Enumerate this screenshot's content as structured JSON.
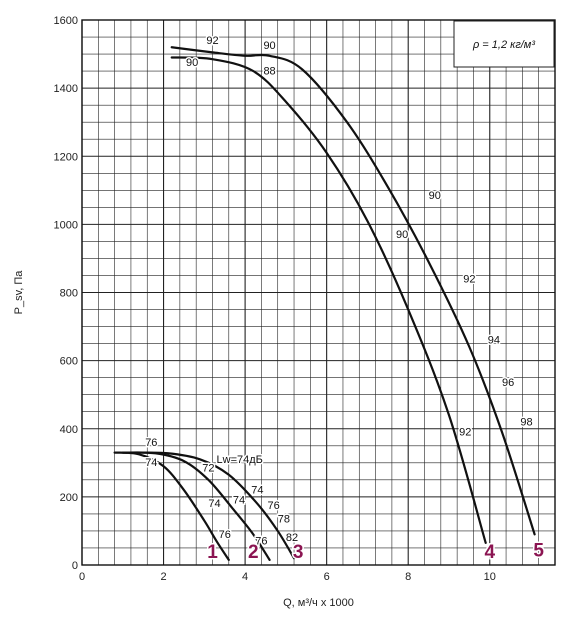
{
  "chart_data": {
    "type": "line",
    "title": "",
    "xlabel": "Q, м³/ч х 1000",
    "ylabel": "P_sv, Па",
    "xlim": [
      0,
      11.6
    ],
    "ylim": [
      0,
      1600
    ],
    "x_ticks": [
      0,
      2,
      4,
      6,
      8,
      10
    ],
    "y_ticks": [
      0,
      200,
      400,
      600,
      800,
      1000,
      1200,
      1400,
      1600
    ],
    "grid": true,
    "density_note": "ρ = 1,2 кг/м³",
    "lw_note": "Lw=74дБ",
    "series": [
      {
        "name": "1",
        "x": [
          0.8,
          1.4,
          2.0,
          2.5,
          3.0,
          3.3,
          3.6
        ],
        "y": [
          330,
          325,
          290,
          220,
          130,
          70,
          15
        ]
      },
      {
        "name": "2",
        "x": [
          1.0,
          1.8,
          2.5,
          3.1,
          3.7,
          4.2,
          4.6
        ],
        "y": [
          330,
          328,
          305,
          250,
          165,
          90,
          15
        ]
      },
      {
        "name": "3",
        "x": [
          1.2,
          2.1,
          2.9,
          3.6,
          4.3,
          4.8,
          5.2
        ],
        "y": [
          330,
          328,
          310,
          265,
          180,
          100,
          20
        ]
      },
      {
        "name": "4",
        "x": [
          2.2,
          3.2,
          4.2,
          5.0,
          6.0,
          7.0,
          8.0,
          9.0,
          9.9
        ],
        "y": [
          1490,
          1485,
          1450,
          1360,
          1210,
          1010,
          750,
          440,
          65
        ]
      },
      {
        "name": "5",
        "x": [
          2.2,
          3.2,
          4.0,
          4.6,
          5.4,
          6.5,
          7.5,
          8.5,
          9.5,
          10.3,
          11.1
        ],
        "y": [
          1520,
          1505,
          1495,
          1495,
          1455,
          1300,
          1110,
          890,
          640,
          390,
          90
        ]
      }
    ],
    "annotations": [
      {
        "text": "92",
        "x": 3.2,
        "y": 1530
      },
      {
        "text": "90",
        "x": 2.7,
        "y": 1465
      },
      {
        "text": "90",
        "x": 4.6,
        "y": 1515
      },
      {
        "text": "88",
        "x": 4.6,
        "y": 1440
      },
      {
        "text": "90",
        "x": 8.65,
        "y": 1075
      },
      {
        "text": "90",
        "x": 7.85,
        "y": 960
      },
      {
        "text": "92",
        "x": 9.5,
        "y": 830
      },
      {
        "text": "94",
        "x": 10.1,
        "y": 650
      },
      {
        "text": "96",
        "x": 10.45,
        "y": 525
      },
      {
        "text": "98",
        "x": 10.9,
        "y": 410
      },
      {
        "text": "92",
        "x": 9.4,
        "y": 380
      },
      {
        "text": "76",
        "x": 1.7,
        "y": 350
      },
      {
        "text": "74",
        "x": 1.7,
        "y": 290
      },
      {
        "text": "72",
        "x": 3.1,
        "y": 275
      },
      {
        "text": "74",
        "x": 4.3,
        "y": 210
      },
      {
        "text": "74",
        "x": 3.25,
        "y": 170
      },
      {
        "text": "74",
        "x": 3.85,
        "y": 180
      },
      {
        "text": "76",
        "x": 4.7,
        "y": 165
      },
      {
        "text": "78",
        "x": 4.95,
        "y": 125
      },
      {
        "text": "76",
        "x": 3.5,
        "y": 80
      },
      {
        "text": "76",
        "x": 4.4,
        "y": 60
      },
      {
        "text": "82",
        "x": 5.15,
        "y": 70
      }
    ],
    "curve_numbers": [
      {
        "text": "1",
        "x": 3.2,
        "y": 20
      },
      {
        "text": "2",
        "x": 4.2,
        "y": 20
      },
      {
        "text": "3",
        "x": 5.3,
        "y": 20
      },
      {
        "text": "4",
        "x": 10.0,
        "y": 20
      },
      {
        "text": "5",
        "x": 11.2,
        "y": 25
      }
    ],
    "colors": {
      "curve": "#111111",
      "grid": "#222222",
      "curve_number": "#8b1552"
    }
  }
}
